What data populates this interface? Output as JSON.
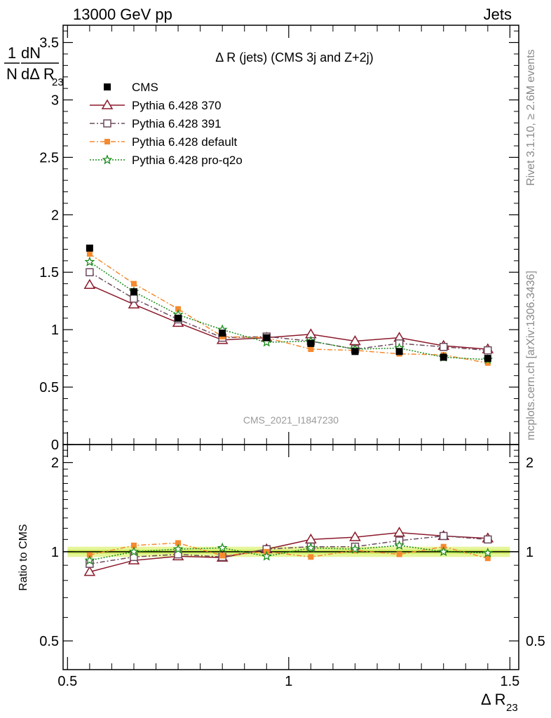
{
  "header": {
    "left": "13000 GeV pp",
    "right": "Jets"
  },
  "side_text": {
    "rivet": "Rivet 3.1.10, ≥ 2.6M events",
    "mcplots": "mcplots.cern.ch [arXiv:1306.3436]"
  },
  "watermark": "CMS_2021_I1847230",
  "plot_title": "Δ R (jets) (CMS 3j and Z+2j)",
  "chart_data": [
    {
      "type": "line",
      "panel": "main",
      "ylabel_parts": {
        "one": "1",
        "n": "N",
        "dn": "dN",
        "dd": "dΔ R",
        "sub": "23"
      },
      "xlim": [
        0.49,
        1.52
      ],
      "ylim": [
        0,
        3.65
      ],
      "yticks": [
        0,
        0.5,
        1,
        1.5,
        2,
        2.5,
        3,
        3.5
      ],
      "ytick_labels": [
        "0",
        "0.5",
        "1",
        "1.5",
        "2",
        "2.5",
        "3",
        "3.5"
      ],
      "x": [
        0.55,
        0.65,
        0.75,
        0.85,
        0.95,
        1.05,
        1.15,
        1.25,
        1.35,
        1.45
      ],
      "series": [
        {
          "name": "CMS",
          "marker": "square",
          "color": "#000000",
          "line": "none",
          "values": [
            1.71,
            1.33,
            1.1,
            0.97,
            0.93,
            0.88,
            0.81,
            0.81,
            0.76,
            0.75
          ]
        },
        {
          "name": "Pythia 6.428 370",
          "marker": "triangle",
          "color": "#8b1a2b",
          "line": "solid",
          "values": [
            1.39,
            1.22,
            1.06,
            0.91,
            0.93,
            0.96,
            0.9,
            0.93,
            0.86,
            0.83
          ]
        },
        {
          "name": "Pythia 6.428 391",
          "marker": "open-square",
          "color": "#6b4a5e",
          "line": "dashdot",
          "values": [
            1.5,
            1.27,
            1.09,
            0.93,
            0.94,
            0.9,
            0.83,
            0.88,
            0.85,
            0.82
          ]
        },
        {
          "name": "Pythia 6.428 default",
          "marker": "filled-square-small",
          "color": "#f58a2e",
          "line": "dashdot",
          "values": [
            1.66,
            1.4,
            1.18,
            0.94,
            0.93,
            0.83,
            0.82,
            0.79,
            0.78,
            0.71
          ]
        },
        {
          "name": "Pythia 6.428 pro-q2o",
          "marker": "star",
          "color": "#1a8a1a",
          "line": "dotted",
          "values": [
            1.59,
            1.33,
            1.13,
            1.0,
            0.89,
            0.9,
            0.83,
            0.84,
            0.76,
            0.74
          ]
        }
      ]
    },
    {
      "type": "line",
      "panel": "ratio",
      "ylabel": "Ratio to CMS",
      "xlabel_parts": {
        "main": "Δ R",
        "sub": "23"
      },
      "xlim": [
        0.49,
        1.52
      ],
      "ylim": [
        0.4,
        2.3
      ],
      "yscale": "log",
      "yticks": [
        0.5,
        1,
        2
      ],
      "ytick_labels": [
        "0.5",
        "1",
        "2"
      ],
      "xticks": [
        0.5,
        1,
        1.5
      ],
      "xtick_labels": [
        "0.5",
        "1",
        "1.5"
      ],
      "x": [
        0.55,
        0.65,
        0.75,
        0.85,
        0.95,
        1.05,
        1.15,
        1.25,
        1.35,
        1.45
      ],
      "band": {
        "color_outer": "#e6f59a",
        "color_inner": "#c9ec5a",
        "half_width": 0.025
      },
      "series": [
        {
          "name": "Pythia 6.428 370",
          "marker": "triangle",
          "color": "#8b1a2b",
          "line": "solid",
          "values": [
            0.855,
            0.935,
            0.965,
            0.955,
            1.02,
            1.1,
            1.12,
            1.16,
            1.13,
            1.11
          ]
        },
        {
          "name": "Pythia 6.428 391",
          "marker": "open-square",
          "color": "#6b4a5e",
          "line": "dashdot",
          "values": [
            0.91,
            0.96,
            0.98,
            0.96,
            1.02,
            1.04,
            1.04,
            1.09,
            1.13,
            1.1
          ]
        },
        {
          "name": "Pythia 6.428 default",
          "marker": "filled-square-small",
          "color": "#f58a2e",
          "line": "dashdot",
          "values": [
            0.975,
            1.05,
            1.07,
            0.97,
            1.0,
            0.96,
            1.01,
            0.98,
            1.04,
            0.95
          ]
        },
        {
          "name": "Pythia 6.428 pro-q2o",
          "marker": "star",
          "color": "#1a8a1a",
          "line": "dotted",
          "values": [
            0.935,
            1.0,
            1.02,
            1.03,
            0.965,
            1.03,
            1.02,
            1.05,
            1.0,
            0.99
          ]
        }
      ]
    }
  ]
}
